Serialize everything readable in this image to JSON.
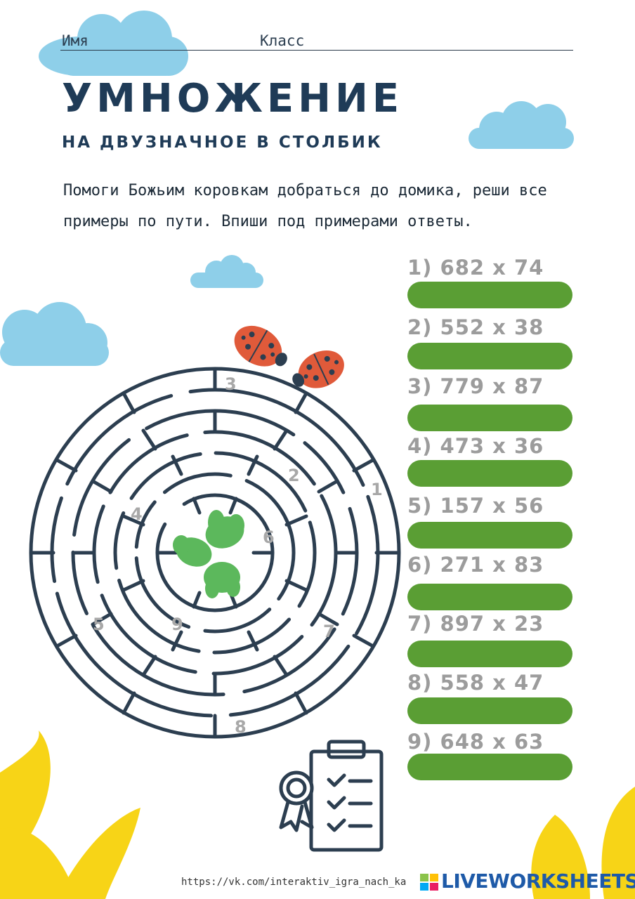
{
  "header": {
    "name_label": "Имя",
    "class_label": "Класс"
  },
  "title": "УМНОЖЕНИЕ",
  "subtitle": "НА ДВУЗНАЧНОЕ В СТОЛБИК",
  "instructions": "Помоги Божьим коровкам добраться до домика, реши все примеры по пути. Впиши под примерами ответы.",
  "problems": [
    {
      "label": "1) 682 x 74",
      "answer": ""
    },
    {
      "label": "2) 552 x 38",
      "answer": ""
    },
    {
      "label": "3) 779 x 87",
      "answer": ""
    },
    {
      "label": "4) 473 x 36",
      "answer": ""
    },
    {
      "label": "5) 157 x 56",
      "answer": ""
    },
    {
      "label": "6) 271 x 83",
      "answer": ""
    },
    {
      "label": "7) 897 x 23",
      "answer": ""
    },
    {
      "label": "8) 558 x 47",
      "answer": ""
    },
    {
      "label": "9) 648 x 63",
      "answer": ""
    }
  ],
  "maze_markers": [
    "1",
    "2",
    "3",
    "4",
    "5",
    "6",
    "7",
    "8",
    "9"
  ],
  "footer": {
    "url": "https://vk.com/interaktiv_igra_nach_ka",
    "brand": "LIVEWORKSHEETS"
  },
  "colors": {
    "cloud": "#8ecfe9",
    "answer_field": "#5a9e34",
    "maze_line": "#2c3e50",
    "ladybug": "#e05a3a",
    "leaf": "#5cb85c",
    "flower": "#f7d417",
    "problem_text": "#9c9c9c"
  },
  "icons": [
    "cloud-icon",
    "ladybug-icon",
    "leaf-icon",
    "certificate-icon",
    "flower-petal-icon"
  ]
}
